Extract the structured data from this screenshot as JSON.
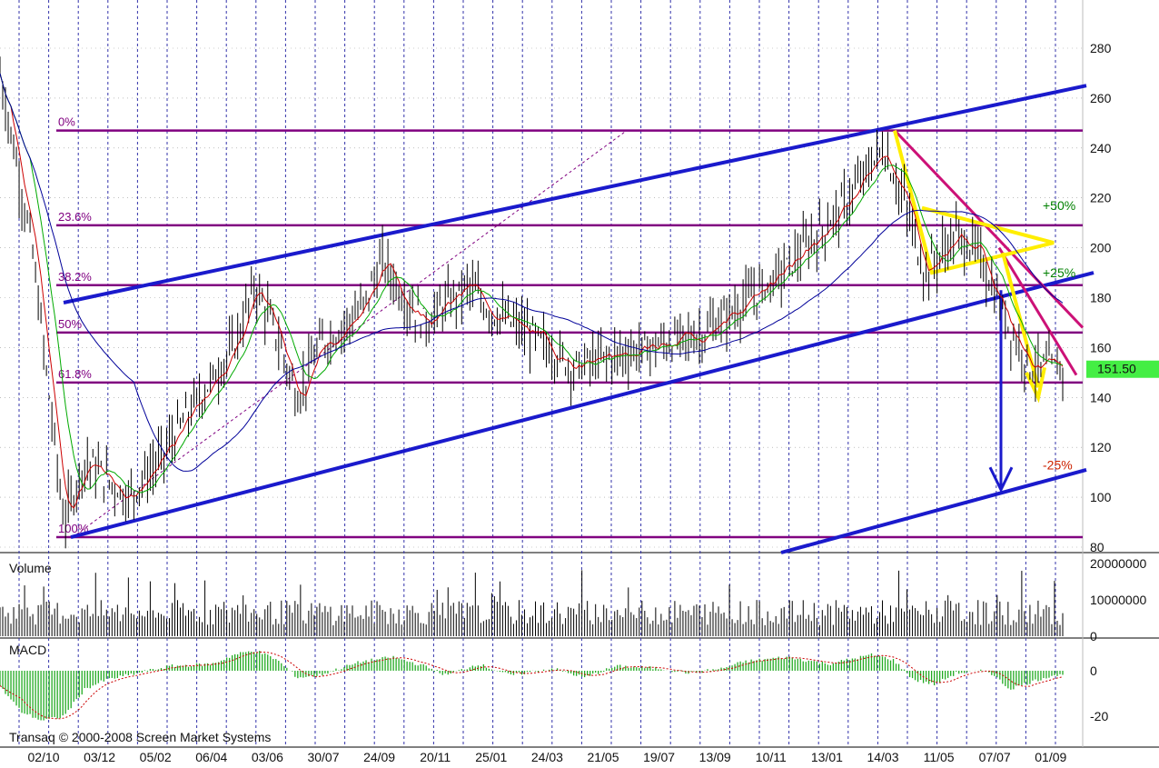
{
  "chart_data": [
    {
      "type": "candlestick",
      "pane": "price",
      "title": "",
      "y_axis_ticks": [
        80,
        100,
        120,
        140,
        160,
        180,
        200,
        220,
        240,
        260,
        280
      ],
      "ylim": [
        80,
        290
      ],
      "x_tick_labels": [
        "02/10",
        "03/12",
        "05/02",
        "06/04",
        "03/06",
        "30/07",
        "24/09",
        "20/11",
        "25/01",
        "24/03",
        "21/05",
        "19/07",
        "13/09",
        "10/11",
        "13/01",
        "14/03",
        "11/05",
        "07/07",
        "01/09"
      ],
      "last_price_label": "151.50",
      "last_price": 151.5,
      "fibonacci_levels": [
        {
          "label": "0%",
          "value": 247
        },
        {
          "label": "23.6%",
          "value": 209
        },
        {
          "label": "38.2%",
          "value": 185
        },
        {
          "label": "50%",
          "value": 166
        },
        {
          "label": "61.8%",
          "value": 146
        },
        {
          "label": "100%",
          "value": 84
        }
      ],
      "percent_annotations": [
        {
          "label": "+50%",
          "value": 217,
          "color": "#008000"
        },
        {
          "label": "+25%",
          "value": 190,
          "color": "#008000"
        },
        {
          "label": "-25%",
          "value": 113,
          "color": "#cc2200"
        }
      ],
      "price_series_approx": [
        [
          0,
          270
        ],
        [
          0.03,
          200
        ],
        [
          0.06,
          90
        ],
        [
          0.08,
          115
        ],
        [
          0.12,
          100
        ],
        [
          0.15,
          115
        ],
        [
          0.18,
          135
        ],
        [
          0.22,
          160
        ],
        [
          0.24,
          185
        ],
        [
          0.26,
          165
        ],
        [
          0.28,
          140
        ],
        [
          0.3,
          160
        ],
        [
          0.34,
          175
        ],
        [
          0.36,
          195
        ],
        [
          0.38,
          180
        ],
        [
          0.4,
          170
        ],
        [
          0.44,
          185
        ],
        [
          0.46,
          175
        ],
        [
          0.5,
          165
        ],
        [
          0.54,
          152
        ],
        [
          0.58,
          157
        ],
        [
          0.62,
          161
        ],
        [
          0.66,
          165
        ],
        [
          0.7,
          178
        ],
        [
          0.74,
          192
        ],
        [
          0.78,
          210
        ],
        [
          0.8,
          220
        ],
        [
          0.83,
          240
        ],
        [
          0.85,
          220
        ],
        [
          0.87,
          190
        ],
        [
          0.9,
          205
        ],
        [
          0.92,
          198
        ],
        [
          0.95,
          168
        ],
        [
          0.97,
          152
        ]
      ],
      "moving_averages": [
        {
          "color": "#cc0000"
        },
        {
          "color": "#00aa00"
        },
        {
          "color": "#000099"
        }
      ]
    },
    {
      "type": "bar",
      "pane": "volume",
      "title": "Volume",
      "y_axis_ticks": [
        0,
        10000000,
        20000000
      ],
      "y_axis_tick_labels": [
        "0",
        "10000000",
        "20000000"
      ],
      "ylim": [
        0,
        20000000
      ]
    },
    {
      "type": "histogram",
      "pane": "macd",
      "title": "MACD",
      "y_axis_ticks": [
        0,
        -20
      ],
      "y_axis_tick_labels": [
        "0",
        "-20"
      ],
      "ylim": [
        -27,
        12
      ],
      "macd_series_approx": [
        [
          0,
          -7
        ],
        [
          0.02,
          -18
        ],
        [
          0.04,
          -22
        ],
        [
          0.06,
          -20
        ],
        [
          0.08,
          -8
        ],
        [
          0.1,
          -4
        ],
        [
          0.14,
          0
        ],
        [
          0.16,
          2
        ],
        [
          0.2,
          3
        ],
        [
          0.22,
          7
        ],
        [
          0.24,
          9
        ],
        [
          0.26,
          5
        ],
        [
          0.28,
          -3
        ],
        [
          0.3,
          -2
        ],
        [
          0.34,
          4
        ],
        [
          0.37,
          6
        ],
        [
          0.4,
          2
        ],
        [
          0.42,
          -2
        ],
        [
          0.45,
          3
        ],
        [
          0.48,
          -2
        ],
        [
          0.52,
          1
        ],
        [
          0.55,
          -3
        ],
        [
          0.58,
          2
        ],
        [
          0.62,
          1
        ],
        [
          0.65,
          -1
        ],
        [
          0.68,
          1
        ],
        [
          0.7,
          4
        ],
        [
          0.74,
          6
        ],
        [
          0.78,
          3
        ],
        [
          0.82,
          7
        ],
        [
          0.84,
          5
        ],
        [
          0.86,
          -4
        ],
        [
          0.88,
          -6
        ],
        [
          0.9,
          -1
        ],
        [
          0.93,
          0
        ],
        [
          0.95,
          -8
        ],
        [
          0.97,
          -5
        ],
        [
          0.99,
          -2
        ]
      ]
    }
  ],
  "footer": {
    "copyright": "Transaq © 2000-2008 Screen Market Systems"
  },
  "colors": {
    "background": "#ffffff",
    "grid_vertical": "#3333aa",
    "fib_line": "#800080",
    "trend_blue": "#1a1acc",
    "trend_magenta": "#cc1177",
    "triangle_yellow": "#ffee00",
    "price_label_bg": "#44ee44",
    "volume_bar": "#000000",
    "macd_bar": "#22aa22",
    "macd_signal": "#cc0000"
  }
}
